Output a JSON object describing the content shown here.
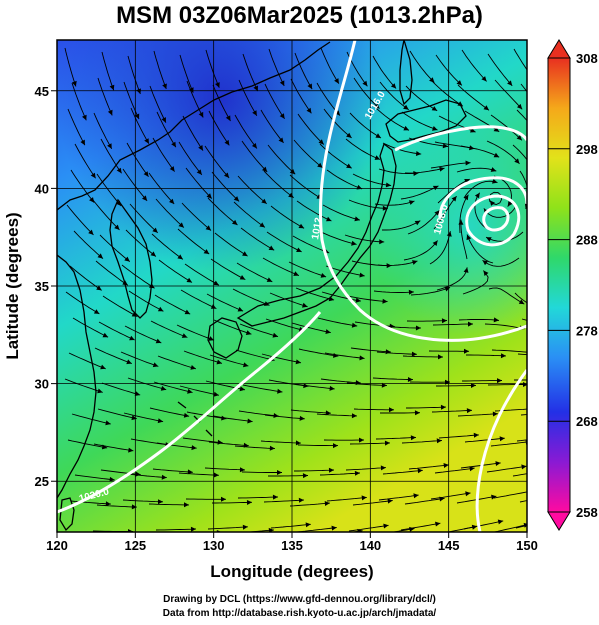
{
  "title": "MSM 03Z06Mar2025 (1013.2hPa)",
  "axes": {
    "xlabel": "Longitude (degrees)",
    "ylabel": "Latitude  (degrees)",
    "xlim": [
      120,
      150
    ],
    "ylim": [
      22.4,
      47.6
    ],
    "xticks": [
      "120",
      "125",
      "130",
      "135",
      "140",
      "145",
      "150"
    ],
    "yticks": [
      "25",
      "30",
      "35",
      "40",
      "45"
    ]
  },
  "colorbar": {
    "min": 258,
    "max": 308,
    "ticks": [
      "308",
      "298",
      "288",
      "278",
      "268",
      "258"
    ],
    "colors": [
      "#ff0aa0",
      "#8a1ad4",
      "#2330e6",
      "#2a8ff5",
      "#22d8d8",
      "#2fd86a",
      "#8fe21a",
      "#e2e21a",
      "#f5a81a",
      "#e83020"
    ]
  },
  "isobars": [
    {
      "value": "1016.0",
      "label": "1016.0"
    },
    {
      "value": "1012",
      "label": "1012"
    },
    {
      "value": "1008.0",
      "label": "1008.0"
    },
    {
      "value": "1020.0",
      "label": "1020.0"
    }
  ],
  "low_center": {
    "lon": 148.0,
    "lat": 39.5
  },
  "credits": {
    "line1": "Drawing by DCL (https://www.gfd-dennou.org/library/dcl/)",
    "line2": "Data from http://database.rish.kyoto-u.ac.jp/arch/jmadata/"
  }
}
